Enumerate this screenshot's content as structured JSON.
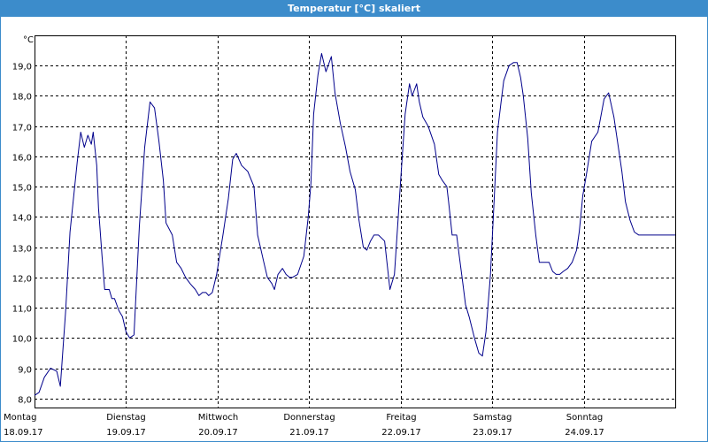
{
  "window": {
    "title": "Temperatur [°C] skaliert"
  },
  "chart_data": {
    "type": "line",
    "title": "Temperatur [°C] skaliert",
    "ylabel": "°C",
    "xlabel": "",
    "ylim": [
      7.7,
      20.0
    ],
    "yticks": [
      8.0,
      9.0,
      10.0,
      11.0,
      12.0,
      13.0,
      14.0,
      15.0,
      16.0,
      17.0,
      18.0,
      19.0
    ],
    "ytick_labels": [
      "8,0",
      "9,0",
      "10,0",
      "11,0",
      "12,0",
      "13,0",
      "14,0",
      "15,0",
      "16,0",
      "17,0",
      "18,0",
      "19,0"
    ],
    "xlim": [
      0,
      7
    ],
    "days": [
      {
        "weekday": "Montag",
        "date": "18.09.17"
      },
      {
        "weekday": "Dienstag",
        "date": "19.09.17"
      },
      {
        "weekday": "Mittwoch",
        "date": "20.09.17"
      },
      {
        "weekday": "Donnerstag",
        "date": "21.09.17"
      },
      {
        "weekday": "Freitag",
        "date": "22.09.17"
      },
      {
        "weekday": "Samstag",
        "date": "23.09.17"
      },
      {
        "weekday": "Sonntag",
        "date": "24.09.17"
      }
    ],
    "grid": true,
    "line_color": "#00008b",
    "series": [
      {
        "x": [
          0.0,
          0.049,
          0.107,
          0.175,
          0.243,
          0.282,
          0.301,
          0.34,
          0.388,
          0.466,
          0.505,
          0.544,
          0.583,
          0.621,
          0.641,
          0.68,
          0.699,
          0.738,
          0.767,
          0.816,
          0.845,
          0.874,
          0.922,
          0.961,
          1.0,
          1.039,
          1.087,
          1.146,
          1.204,
          1.262,
          1.311,
          1.359,
          1.408,
          1.437,
          1.505,
          1.553,
          1.602,
          1.65,
          1.699,
          1.757,
          1.796,
          1.835,
          1.874,
          1.903,
          1.942,
          1.99,
          2.058,
          2.117,
          2.165,
          2.204,
          2.262,
          2.33,
          2.398,
          2.437,
          2.505,
          2.544,
          2.592,
          2.621,
          2.66,
          2.709,
          2.748,
          2.786,
          2.816,
          2.874,
          2.942,
          2.99,
          3.019,
          3.049,
          3.097,
          3.136,
          3.184,
          3.243,
          3.282,
          3.34,
          3.398,
          3.447,
          3.505,
          3.544,
          3.592,
          3.631,
          3.67,
          3.709,
          3.757,
          3.825,
          3.883,
          3.932,
          4.0,
          4.049,
          4.097,
          4.126,
          4.175,
          4.204,
          4.243,
          4.301,
          4.369,
          4.417,
          4.456,
          4.505,
          4.524,
          4.563,
          4.612,
          4.641,
          4.68,
          4.709,
          4.748,
          4.806,
          4.854,
          4.893,
          4.932,
          4.981,
          5.019,
          5.058,
          5.097,
          5.126,
          5.184,
          5.233,
          5.272,
          5.311,
          5.34,
          5.388,
          5.427,
          5.476,
          5.515,
          5.563,
          5.621,
          5.66,
          5.699,
          5.738,
          5.777,
          5.825,
          5.874,
          5.922,
          5.951,
          5.99,
          6.029,
          6.087,
          6.155,
          6.223,
          6.272,
          6.33,
          6.369,
          6.417,
          6.456,
          6.505,
          6.553,
          6.602,
          6.65,
          6.699,
          6.757,
          6.806,
          6.864,
          6.913,
          6.961,
          7.0
        ],
        "y": [
          8.1,
          8.2,
          8.7,
          9.0,
          8.9,
          8.4,
          9.2,
          10.9,
          13.5,
          15.8,
          16.8,
          16.3,
          16.7,
          16.4,
          16.8,
          15.7,
          14.3,
          12.7,
          11.6,
          11.6,
          11.3,
          11.3,
          10.9,
          10.7,
          10.2,
          10.0,
          10.1,
          13.7,
          16.3,
          17.8,
          17.6,
          16.5,
          15.2,
          13.8,
          13.4,
          12.5,
          12.3,
          12.0,
          11.8,
          11.6,
          11.4,
          11.5,
          11.5,
          11.4,
          11.5,
          12.1,
          13.4,
          14.6,
          15.9,
          16.1,
          15.7,
          15.5,
          15.0,
          13.4,
          12.5,
          12.0,
          11.8,
          11.6,
          12.1,
          12.3,
          12.1,
          12.0,
          12.0,
          12.1,
          12.7,
          14.0,
          15.1,
          17.4,
          18.7,
          19.4,
          18.8,
          19.3,
          18.1,
          17.1,
          16.3,
          15.5,
          14.9,
          13.9,
          13.0,
          12.9,
          13.2,
          13.4,
          13.4,
          13.2,
          11.6,
          12.1,
          15.2,
          17.4,
          18.4,
          18.0,
          18.4,
          17.8,
          17.3,
          17.0,
          16.4,
          15.4,
          15.2,
          15.0,
          14.5,
          13.4,
          13.4,
          12.7,
          11.8,
          11.1,
          10.7,
          10.0,
          9.5,
          9.4,
          10.2,
          12.1,
          14.4,
          16.8,
          17.8,
          18.5,
          19.0,
          19.1,
          19.1,
          18.6,
          18.0,
          16.6,
          14.8,
          13.4,
          12.5,
          12.5,
          12.5,
          12.2,
          12.1,
          12.1,
          12.2,
          12.3,
          12.5,
          12.9,
          13.5,
          14.7,
          15.4,
          16.5,
          16.8,
          17.9,
          18.1,
          17.3,
          16.5,
          15.5,
          14.5,
          13.9,
          13.5,
          13.4,
          13.4,
          13.4,
          13.4,
          13.4,
          13.4,
          13.4,
          13.4,
          13.4
        ]
      }
    ]
  }
}
